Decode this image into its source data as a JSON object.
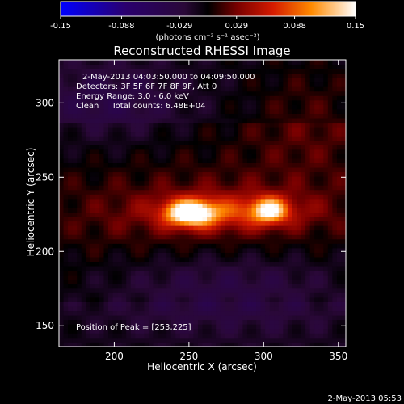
{
  "chart_data": {
    "type": "heatmap",
    "title": "Reconstructed RHESSI Image",
    "xlabel": "Heliocentric X (arcsec)",
    "ylabel": "Heliocentric Y (arcsec)",
    "xlim": [
      163,
      355
    ],
    "ylim": [
      136,
      329
    ],
    "xticks": [
      200,
      250,
      300,
      350
    ],
    "yticks": [
      150,
      200,
      250,
      300
    ],
    "colorbar": {
      "range": [
        -0.15,
        0.15
      ],
      "ticks": [
        "-0.15",
        "-0.088",
        "-0.029",
        "0.029",
        "0.088",
        "0.15"
      ],
      "unit_label": "(photons cm⁻² s⁻¹ asec⁻²)"
    },
    "annotations": [
      "2-May-2013 04:03:50.000 to 04:09:50.000",
      "Detectors: 3F 5F 6F 7F 8F 9F, Att 0",
      "Energy Range: 3.0 - 6.0 keV",
      "Clean     Total counts: 6.48E+04"
    ],
    "peak_label": "Position of Peak = [253,225]",
    "peak_position": [
      253,
      225
    ],
    "sources": [
      {
        "x": 251,
        "y": 226,
        "sx": 11,
        "sy": 6,
        "amp": 0.15
      },
      {
        "x": 304,
        "y": 228,
        "sx": 8,
        "sy": 6,
        "amp": 0.11
      },
      {
        "x": 277,
        "y": 227,
        "sx": 34,
        "sy": 8,
        "amp": 0.05
      },
      {
        "x": 262,
        "y": 223,
        "sx": 70,
        "sy": 22,
        "amp": 0.03
      }
    ]
  },
  "footer": {
    "timestamp": "2-May-2013 05:53"
  }
}
